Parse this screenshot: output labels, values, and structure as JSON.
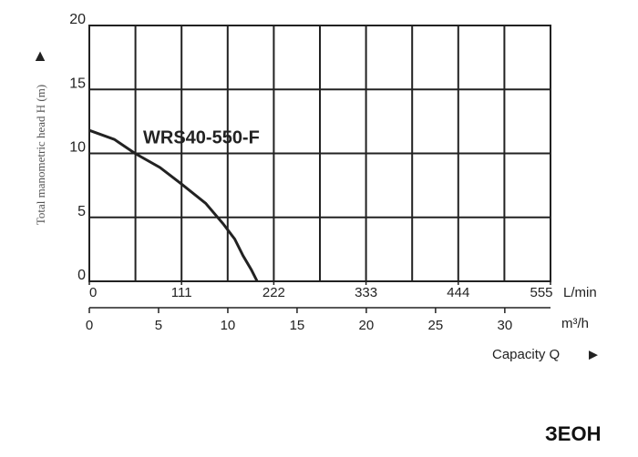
{
  "chart_data": {
    "type": "line",
    "y_label": "Total manometric head H (m)",
    "x_unit": "L/min",
    "x2_unit": "m³/h",
    "x_label": "Capacity Q",
    "series": [
      {
        "name": "WRS40-550-F",
        "color": "#222222",
        "x": [
          0,
          30,
          55,
          85,
          111,
          140,
          161,
          175,
          185,
          195,
          202
        ],
        "values": [
          11.8,
          11.1,
          10,
          8.9,
          7.6,
          6.1,
          4.5,
          3.3,
          2,
          0.9,
          0
        ]
      }
    ],
    "xlim": [
      0,
      555
    ],
    "xticks": [
      0,
      111,
      222,
      333,
      444,
      555
    ],
    "x2lim": [
      0,
      33.3
    ],
    "x2ticks": [
      0,
      5,
      10,
      15,
      20,
      25,
      30
    ],
    "ylim": [
      0,
      20
    ],
    "yticks": [
      0,
      5,
      10,
      15,
      20
    ],
    "grid": true,
    "logo": "ЗЕОН"
  }
}
